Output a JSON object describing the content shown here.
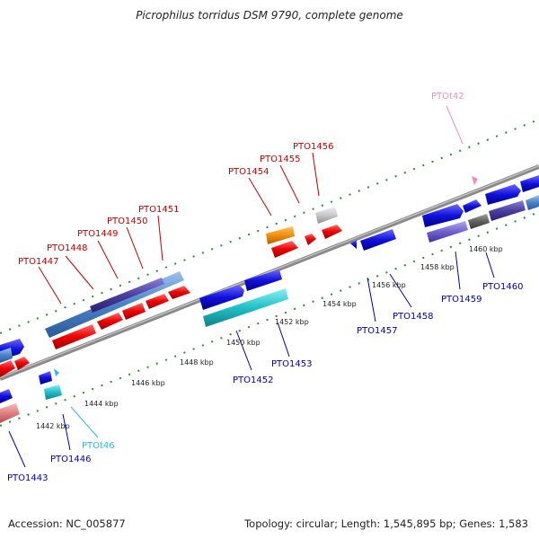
{
  "title": "Picrophilus torridus DSM 9790, complete genome",
  "footer": {
    "accession": "Accession: NC_005877",
    "summary": "Topology: circular; Length: 1,545,895 bp; Genes: 1,583"
  },
  "kbp_ticks": [
    "1442 kbp",
    "1444 kbp",
    "1446 kbp",
    "1448 kbp",
    "1450 kbp",
    "1452 kbp",
    "1454 kbp",
    "1456 kbp",
    "1458 kbp",
    "1460 kbp"
  ],
  "gene_labels": {
    "forward": [
      "PTO1447",
      "PTO1448",
      "PTO1449",
      "PTO1450",
      "PTO1451",
      "PTO1454",
      "PTO1455",
      "PTO1456"
    ],
    "reverse": [
      "PTO1443",
      "PTO1446",
      "PTO1452",
      "PTO1453",
      "PTO1457",
      "PTO1458",
      "PTO1459",
      "PTO1460"
    ],
    "rna": [
      "PTOt46",
      "PTOt42"
    ]
  },
  "colors": {
    "backbone": "#8a8a8a",
    "tick": "#2e8b2e",
    "forward_label": "#c00000",
    "reverse_label": "#0000aa",
    "trna_label_1": "#33b5e5",
    "trna_label_2": "#f08cc0",
    "red": "#ee0000",
    "blue": "#1010dd",
    "steel": "#4a82c8",
    "purple": "#4b3ea0",
    "teal": "#20c0c8",
    "orange": "#f0900a",
    "grey": "#c8c8c8",
    "pink": "#e08080",
    "lavender": "#7060d0"
  }
}
